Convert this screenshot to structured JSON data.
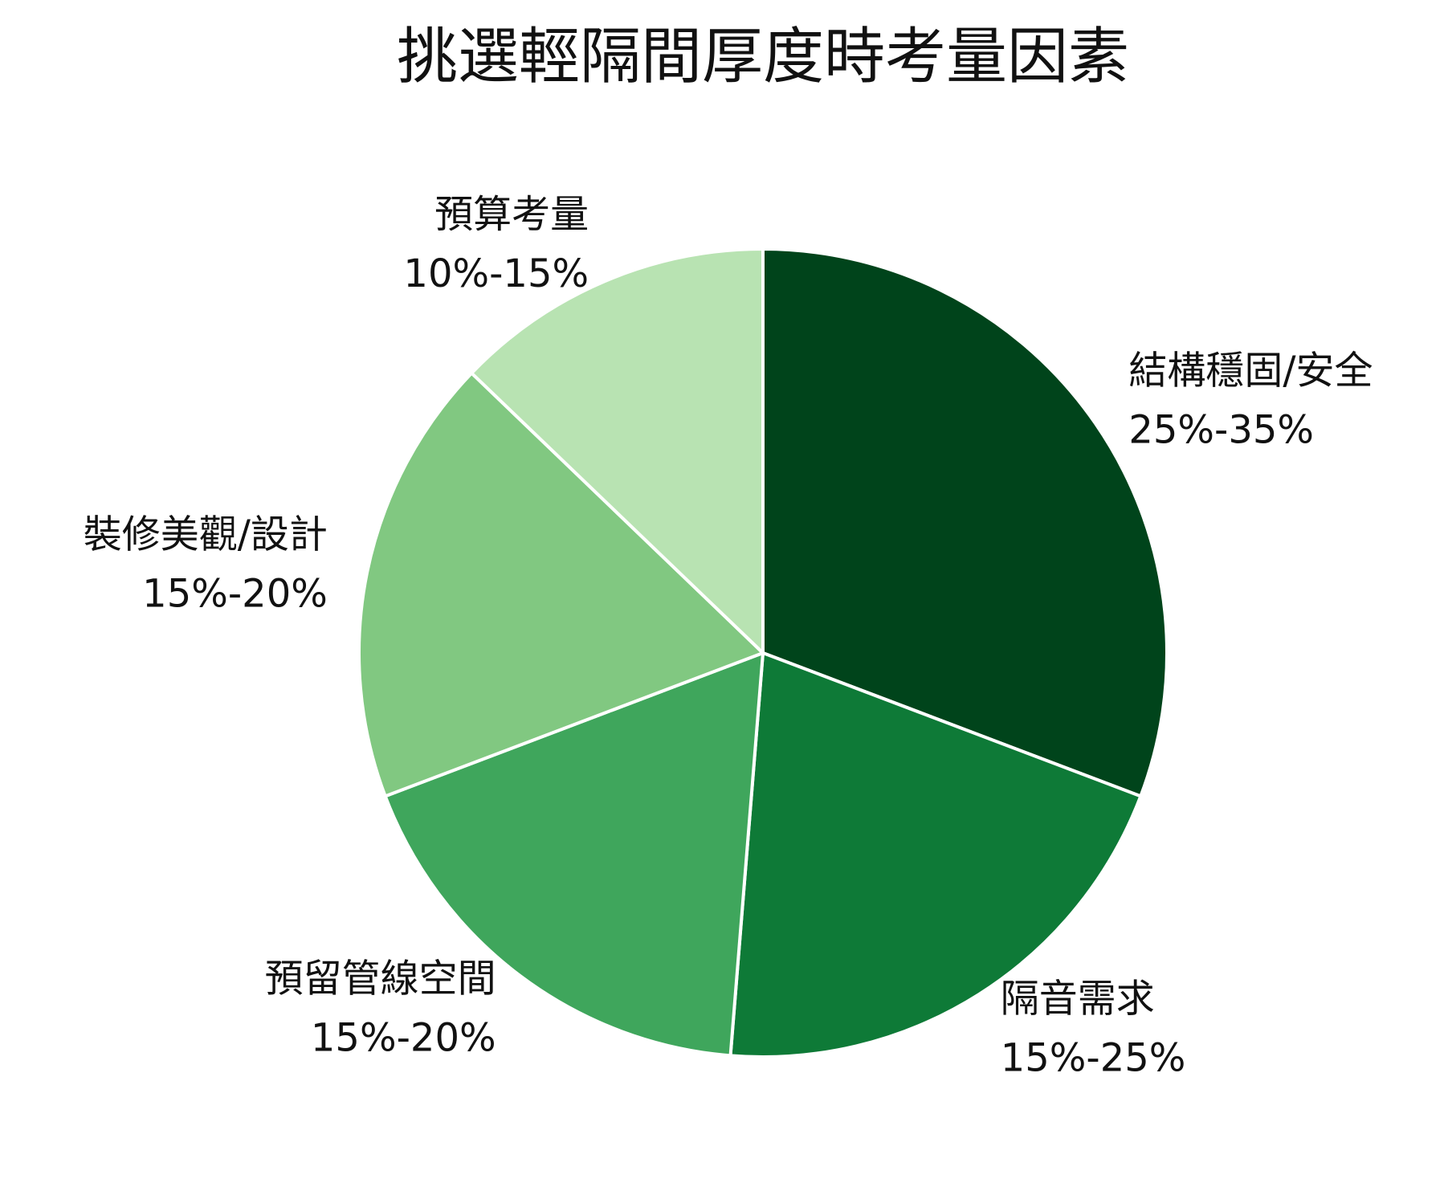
{
  "chart_data": {
    "type": "pie",
    "title": "挑選輕隔間厚度時考量因素",
    "legend": "none",
    "slices": [
      {
        "label": "結構穩固/安全",
        "range": "25%-35%",
        "value": 30,
        "color": "#00441b"
      },
      {
        "label": "隔音需求",
        "range": "15%-25%",
        "value": 20,
        "color": "#0e7a37"
      },
      {
        "label": "預留管線空間",
        "range": "15%-20%",
        "value": 17.5,
        "color": "#3fa65c"
      },
      {
        "label": "裝修美觀/設計",
        "range": "15%-20%",
        "value": 17.5,
        "color": "#81c881"
      },
      {
        "label": "預算考量",
        "range": "10%-15%",
        "value": 12.5,
        "color": "#b8e3b2"
      }
    ]
  }
}
